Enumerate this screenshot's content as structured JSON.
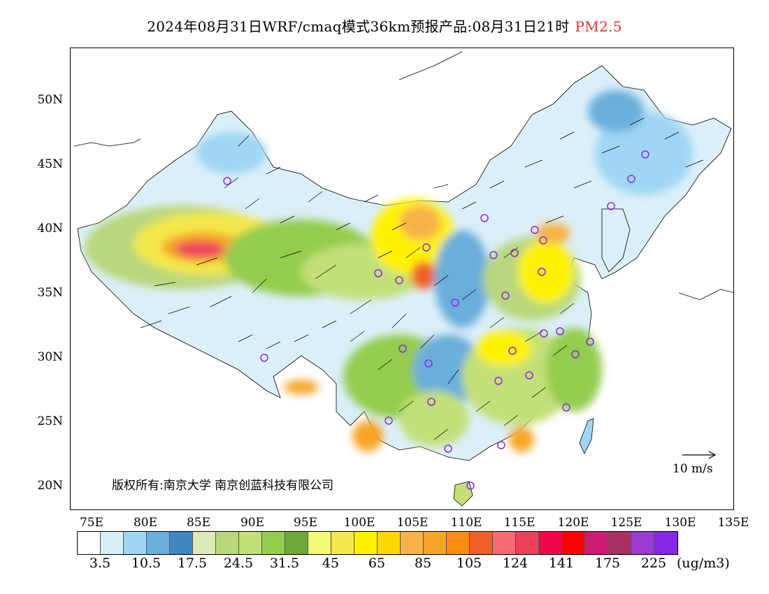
{
  "title": {
    "main": "2024年08月31日WRF/cmaq模式36km预报产品:08月31日21时",
    "species": "PM2.5"
  },
  "map": {
    "lat_labels": [
      "50N",
      "45N",
      "40N",
      "35N",
      "30N",
      "25N",
      "20N"
    ],
    "lon_labels": [
      "75E",
      "80E",
      "85E",
      "90E",
      "95E",
      "100E",
      "105E",
      "110E",
      "115E",
      "120E",
      "125E",
      "130E",
      "135E"
    ],
    "copyright": "版权所有:南京大学 南京创蓝科技有限公司",
    "wind_scale_label": "10 m/s"
  },
  "colorbar": {
    "colors": [
      "#ffffff",
      "#d8effa",
      "#9ed6f3",
      "#6aaedc",
      "#3f87c0",
      "#dceab8",
      "#b9d77c",
      "#c3e078",
      "#94cc4e",
      "#6ea838",
      "#f2f877",
      "#f4e84c",
      "#fff200",
      "#ffd800",
      "#f6b24a",
      "#f8a428",
      "#fb8c12",
      "#f0602a",
      "#f76a72",
      "#ee3f5c",
      "#f2064a",
      "#ff0000",
      "#d01b73",
      "#a93060",
      "#9a3ad0",
      "#8528e6"
    ],
    "labels": [
      "3.5",
      "10.5",
      "17.5",
      "24.5",
      "31.5",
      "45",
      "65",
      "85",
      "105",
      "124",
      "141",
      "175",
      "225"
    ],
    "units": "(ug/m3)"
  }
}
